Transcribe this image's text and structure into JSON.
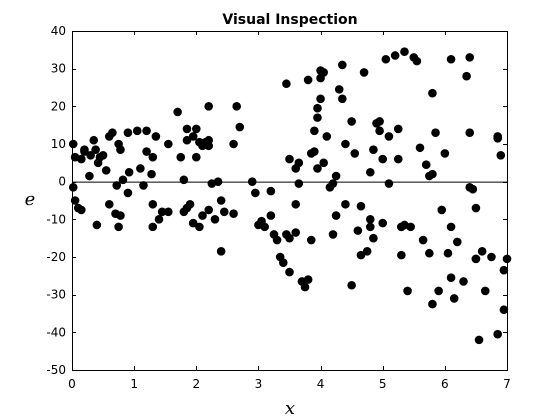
{
  "chart_data": {
    "type": "scatter",
    "title": "Visual Inspection",
    "xlabel": "x",
    "ylabel": "e",
    "xlim": [
      0,
      7
    ],
    "ylim": [
      -50,
      40
    ],
    "xticks": [
      "0",
      "1",
      "2",
      "3",
      "4",
      "5",
      "6",
      "7"
    ],
    "yticks": [
      "-50",
      "-40",
      "-30",
      "-20",
      "-10",
      "0",
      "10",
      "20",
      "30",
      "40"
    ],
    "reference_line_y": 0,
    "marker_color": "#000000",
    "points": [
      [
        0.02,
        10
      ],
      [
        0.05,
        6.5
      ],
      [
        0.15,
        6
      ],
      [
        0.2,
        8
      ],
      [
        0.3,
        7
      ],
      [
        0.38,
        8.5
      ],
      [
        0.45,
        6.5
      ],
      [
        0.5,
        7
      ],
      [
        0.42,
        5
      ],
      [
        0.6,
        12
      ],
      [
        0.65,
        13
      ],
      [
        0.75,
        10
      ],
      [
        0.78,
        8.5
      ],
      [
        0.9,
        13
      ],
      [
        1.05,
        13.5
      ],
      [
        1.2,
        8
      ],
      [
        1.3,
        6.5
      ],
      [
        1.35,
        12
      ],
      [
        1.55,
        10
      ],
      [
        1.7,
        18.5
      ],
      [
        1.75,
        6.5
      ],
      [
        1.85,
        14
      ],
      [
        1.85,
        11
      ],
      [
        1.95,
        12
      ],
      [
        2.0,
        14
      ],
      [
        2.05,
        10.5
      ],
      [
        2.1,
        9.5
      ],
      [
        2.15,
        10.5
      ],
      [
        2.2,
        11
      ],
      [
        2.2,
        20
      ],
      [
        2.2,
        9.5
      ],
      [
        2.35,
        0
      ],
      [
        2.6,
        10
      ],
      [
        2.7,
        14.5
      ],
      [
        2.65,
        20
      ],
      [
        2.0,
        6.5
      ],
      [
        2.25,
        -0.5
      ],
      [
        0.28,
        1.5
      ],
      [
        0.55,
        3
      ],
      [
        0.72,
        -1
      ],
      [
        0.82,
        0.5
      ],
      [
        0.92,
        2.5
      ],
      [
        1.1,
        3.5
      ],
      [
        1.28,
        2
      ],
      [
        1.8,
        0.5
      ],
      [
        0.02,
        -1.5
      ],
      [
        0.05,
        -5
      ],
      [
        0.1,
        -7
      ],
      [
        0.15,
        -7.5
      ],
      [
        0.4,
        -11.5
      ],
      [
        0.6,
        -6
      ],
      [
        0.7,
        -8.5
      ],
      [
        0.78,
        -9
      ],
      [
        0.75,
        -12
      ],
      [
        0.9,
        -3
      ],
      [
        1.15,
        -1
      ],
      [
        1.3,
        -6
      ],
      [
        1.3,
        -12
      ],
      [
        1.4,
        -10
      ],
      [
        1.45,
        -8
      ],
      [
        1.55,
        -8
      ],
      [
        1.8,
        -8
      ],
      [
        1.85,
        -7
      ],
      [
        1.9,
        -6
      ],
      [
        1.95,
        -11
      ],
      [
        2.05,
        -12
      ],
      [
        2.1,
        -9
      ],
      [
        2.2,
        -7.5
      ],
      [
        2.3,
        -10
      ],
      [
        2.4,
        -5
      ],
      [
        2.45,
        -8
      ],
      [
        2.6,
        -8.5
      ],
      [
        2.4,
        -18.5
      ],
      [
        3.2,
        -2.5
      ],
      [
        3.1,
        -12
      ],
      [
        3.05,
        -10.5
      ],
      [
        3.2,
        -9
      ],
      [
        3.25,
        -14
      ],
      [
        3.45,
        -14
      ],
      [
        3.5,
        -24
      ],
      [
        3.4,
        -21.5
      ],
      [
        3.6,
        -6
      ],
      [
        3.6,
        -13.5
      ],
      [
        3.65,
        -0.5
      ],
      [
        3.6,
        3.5
      ],
      [
        3.65,
        5
      ],
      [
        3.7,
        -26.5
      ],
      [
        3.75,
        -28
      ],
      [
        3.8,
        -26
      ],
      [
        3.85,
        -15.5
      ],
      [
        3.85,
        7.5
      ],
      [
        3.9,
        8
      ],
      [
        3.95,
        19.5
      ],
      [
        3.95,
        17
      ],
      [
        3.9,
        13.5
      ],
      [
        4.0,
        27.5
      ],
      [
        4.05,
        29
      ],
      [
        4.0,
        22
      ],
      [
        3.95,
        3.5
      ],
      [
        4.05,
        5
      ],
      [
        4.1,
        12
      ],
      [
        4.15,
        -1.5
      ],
      [
        4.2,
        -0.5
      ],
      [
        4.25,
        -9
      ],
      [
        4.25,
        1.5
      ],
      [
        4.3,
        24.5
      ],
      [
        4.35,
        22
      ],
      [
        4.4,
        10
      ],
      [
        4.4,
        -6
      ],
      [
        4.5,
        16
      ],
      [
        4.55,
        7.5
      ],
      [
        4.6,
        -13
      ],
      [
        4.65,
        -6.5
      ],
      [
        4.65,
        -19.5
      ],
      [
        4.7,
        29
      ],
      [
        4.75,
        -18.5
      ],
      [
        4.8,
        -12
      ],
      [
        4.8,
        -10
      ],
      [
        4.85,
        -15
      ],
      [
        4.85,
        8.5
      ],
      [
        4.9,
        15.5
      ],
      [
        4.95,
        13.5
      ],
      [
        4.95,
        16
      ],
      [
        5.0,
        -11
      ],
      [
        5.05,
        32.5
      ],
      [
        5.1,
        -0.5
      ],
      [
        5.2,
        33.5
      ],
      [
        5.25,
        14
      ],
      [
        5.25,
        6
      ],
      [
        5.3,
        -12
      ],
      [
        5.3,
        -19.5
      ],
      [
        5.35,
        34.5
      ],
      [
        5.35,
        -11.5
      ],
      [
        5.4,
        -29
      ],
      [
        5.45,
        -12
      ],
      [
        5.5,
        33
      ],
      [
        5.55,
        32
      ],
      [
        5.6,
        9
      ],
      [
        5.65,
        -15.5
      ],
      [
        5.7,
        4.5
      ],
      [
        5.75,
        -19
      ],
      [
        5.75,
        1.5
      ],
      [
        5.8,
        -32.5
      ],
      [
        5.8,
        2
      ],
      [
        5.85,
        13
      ],
      [
        5.9,
        -29
      ],
      [
        5.95,
        -7.5
      ],
      [
        6.0,
        7.5
      ],
      [
        6.05,
        -19
      ],
      [
        6.1,
        -12
      ],
      [
        6.1,
        -25.5
      ],
      [
        6.15,
        -31
      ],
      [
        6.2,
        -16
      ],
      [
        6.3,
        -26.5
      ],
      [
        6.35,
        28
      ],
      [
        6.4,
        13
      ],
      [
        6.45,
        -2
      ],
      [
        6.5,
        -7
      ],
      [
        6.5,
        -20.5
      ],
      [
        6.55,
        -42
      ],
      [
        6.6,
        -18.5
      ],
      [
        6.65,
        -29
      ],
      [
        6.75,
        -20
      ],
      [
        6.85,
        -40.5
      ],
      [
        6.85,
        11.5
      ],
      [
        6.85,
        12
      ],
      [
        6.9,
        7
      ],
      [
        6.95,
        -34
      ],
      [
        6.95,
        -23.5
      ],
      [
        7.0,
        -20.5
      ],
      [
        5.0,
        6
      ],
      [
        5.3,
        -12
      ],
      [
        4.35,
        31
      ],
      [
        3.45,
        26
      ],
      [
        3.5,
        6
      ],
      [
        2.9,
        0
      ],
      [
        3.0,
        -11.5
      ],
      [
        4.8,
        2.5
      ],
      [
        5.1,
        12
      ],
      [
        6.1,
        32.5
      ],
      [
        6.4,
        33
      ],
      [
        5.8,
        23.5
      ],
      [
        6.4,
        -1.5
      ],
      [
        4.5,
        -27.5
      ],
      [
        4.2,
        -14
      ],
      [
        3.5,
        -15
      ],
      [
        3.3,
        -15.5
      ],
      [
        6.5,
        -20.5
      ],
      [
        3.35,
        -20
      ],
      [
        0.2,
        8.5
      ],
      [
        0.35,
        11
      ],
      [
        1.2,
        13.5
      ],
      [
        2.95,
        -3
      ],
      [
        3.8,
        27
      ],
      [
        4.0,
        29.5
      ]
    ]
  }
}
